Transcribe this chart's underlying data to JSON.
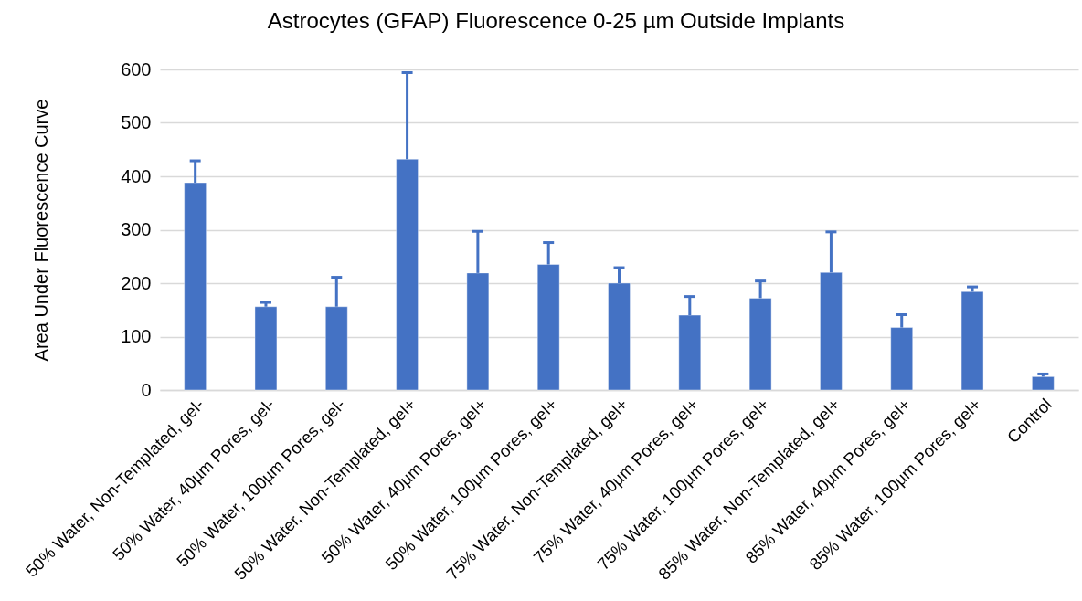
{
  "chart_data": {
    "type": "bar",
    "title": "Astrocytes (GFAP) Fluorescence 0-25 µm Outside Implants",
    "ylabel": "Area Under Fluorescence Curve",
    "categories": [
      "50% Water, Non-Templated, gel-",
      "50% Water, 40µm Pores, gel-",
      "50% Water, 100µm Pores, gel-",
      "50% Water, Non-Templated, gel+",
      "50% Water, 40µm Pores, gel+",
      "50% Water, 100µm Pores, gel+",
      "75% Water, Non-Templated, gel+",
      "75% Water, 40µm Pores, gel+",
      "75% Water, 100µm Pores, gel+",
      "85% Water, Non-Templated, gel+",
      "85% Water, 40µm Pores, gel+",
      "85% Water, 100µm Pores, gel+",
      "Control"
    ],
    "values": [
      388,
      156,
      156,
      432,
      219,
      235,
      200,
      140,
      172,
      220,
      117,
      184,
      25
    ],
    "errors": [
      [
        388,
        429
      ],
      [
        156,
        164
      ],
      [
        156,
        211
      ],
      [
        432,
        594
      ],
      [
        219,
        297
      ],
      [
        235,
        276
      ],
      [
        200,
        229
      ],
      [
        140,
        175
      ],
      [
        172,
        204
      ],
      [
        220,
        296
      ],
      [
        117,
        141
      ],
      [
        184,
        193
      ],
      [
        25,
        30
      ]
    ],
    "color": "#4472c4",
    "ylim": [
      0,
      600
    ],
    "yticks": [
      0,
      100,
      200,
      300,
      400,
      500,
      600
    ],
    "grid": "y"
  }
}
